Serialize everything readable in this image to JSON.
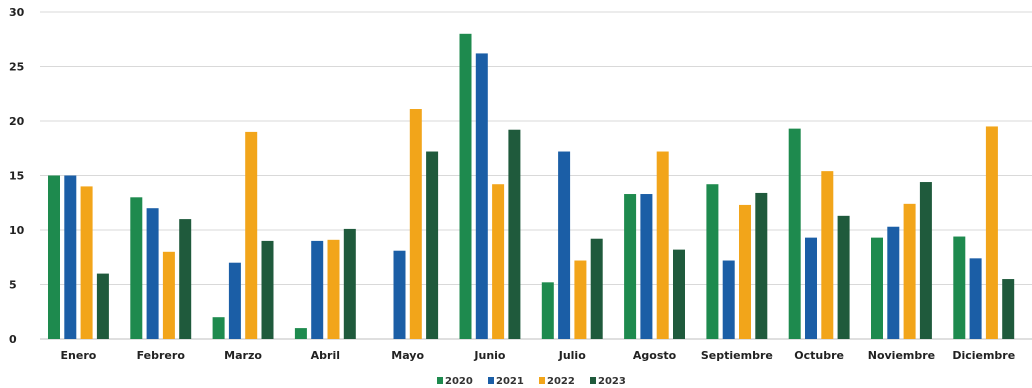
{
  "chart_data": {
    "type": "bar",
    "categories": [
      "Enero",
      "Febrero",
      "Marzo",
      "Abril",
      "Mayo",
      "Junio",
      "Julio",
      "Agosto",
      "Septiembre",
      "Octubre",
      "Noviembre",
      "Diciembre"
    ],
    "series": [
      {
        "name": "2020",
        "color": "#1e8a4e",
        "values": [
          15,
          13,
          2,
          1,
          0,
          28,
          5.2,
          13.3,
          14.2,
          19.3,
          9.3,
          9.4
        ]
      },
      {
        "name": "2021",
        "color": "#1b5ea6",
        "values": [
          15,
          12,
          7,
          9,
          8.1,
          26.2,
          17.2,
          13.3,
          7.2,
          9.3,
          10.3,
          7.4
        ]
      },
      {
        "name": "2022",
        "color": "#f2a51a",
        "values": [
          14,
          8,
          19,
          9.1,
          21.1,
          14.2,
          7.2,
          17.2,
          12.3,
          15.4,
          12.4,
          19.5
        ]
      },
      {
        "name": "2023",
        "color": "#1f5a3c",
        "values": [
          6,
          11,
          9,
          10.1,
          17.2,
          19.2,
          9.2,
          8.2,
          13.4,
          11.3,
          14.4,
          5.5
        ]
      }
    ],
    "y_ticks": [
      "0",
      "5",
      "10",
      "15",
      "20",
      "25",
      "30"
    ],
    "ylim": [
      0,
      30
    ],
    "grid": true,
    "legend_position": "bottom-center"
  }
}
